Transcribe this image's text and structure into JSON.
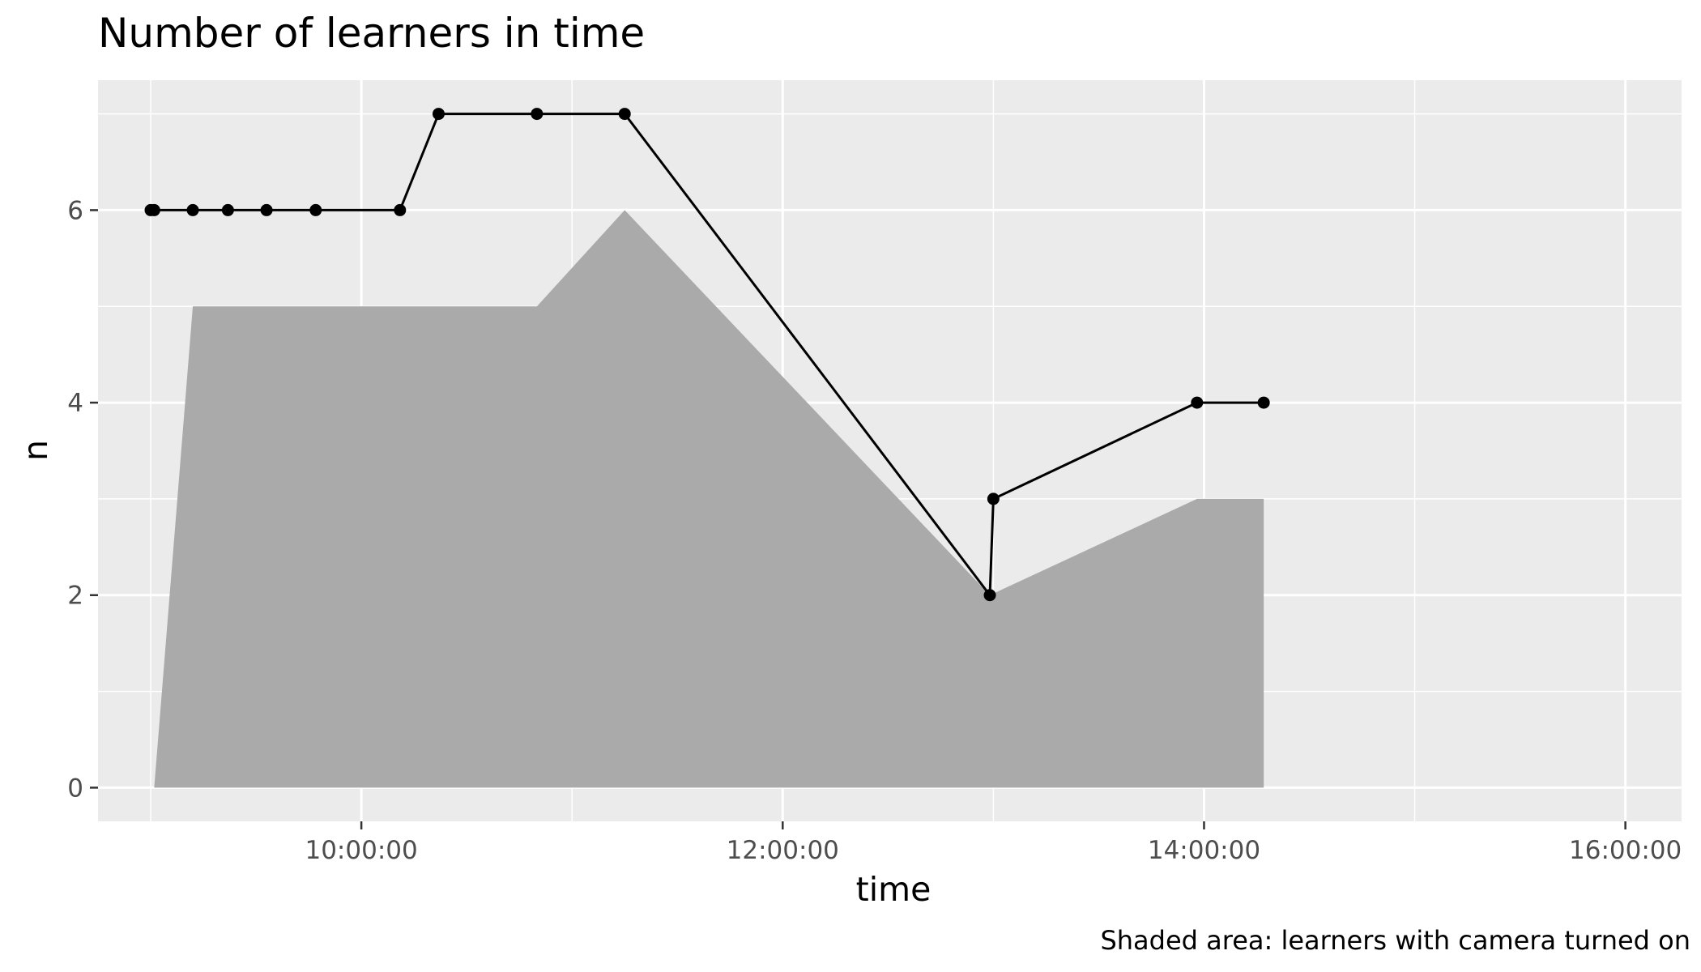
{
  "chart_data": {
    "type": "line",
    "title": "Number of learners in time",
    "xlabel": "time",
    "ylabel": "n",
    "caption": "Shaded area: learners with camera turned on",
    "x_ticks": [
      "10:00:00",
      "12:00:00",
      "14:00:00",
      "16:00:00"
    ],
    "y_ticks": [
      0,
      2,
      4,
      6
    ],
    "xlim": [
      "08:45:00",
      "16:16:00"
    ],
    "ylim": [
      -0.35,
      7.35
    ],
    "grid": true,
    "series": [
      {
        "style": "line+points",
        "color": "#000000",
        "x": [
          "09:00:00",
          "09:01:00",
          "09:12:00",
          "09:22:00",
          "09:33:00",
          "09:47:00",
          "10:11:00",
          "10:22:00",
          "10:50:00",
          "11:15:00",
          "12:59:00",
          "13:00:00",
          "13:58:00",
          "14:17:00"
        ],
        "y": [
          6,
          6,
          6,
          6,
          6,
          6,
          6,
          7,
          7,
          7,
          2,
          3,
          4,
          4
        ]
      },
      {
        "style": "area",
        "color": "#aaaaaa",
        "x": [
          "09:01:00",
          "09:12:00",
          "10:50:00",
          "11:15:00",
          "12:59:00",
          "13:58:00",
          "14:17:00"
        ],
        "y": [
          0,
          5,
          5,
          6,
          2,
          3,
          3
        ]
      }
    ]
  }
}
